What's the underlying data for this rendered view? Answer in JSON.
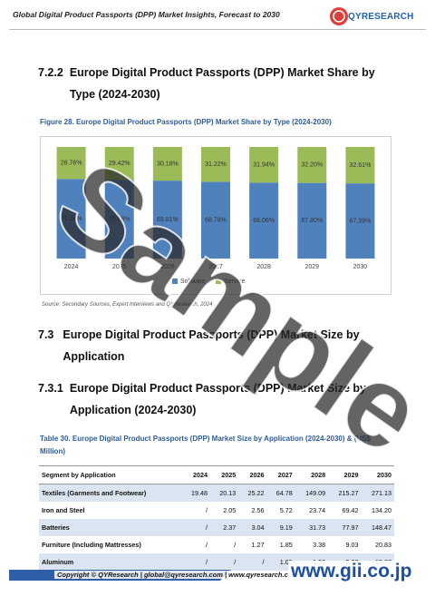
{
  "header": {
    "title": "Global Digital Product Passports (DPP) Market Insights, Forecast to 2030",
    "logo": "QYRESEARCH"
  },
  "sections": [
    {
      "number": "7.2.2",
      "title": "Europe Digital Product Passports (DPP) Market Share by Type (2024-2030)"
    },
    {
      "number": "7.3",
      "title": "Europe Digital Product Passports (DPP) Market Size by Application"
    },
    {
      "number": "7.3.1",
      "title": "Europe Digital Product Passports (DPP) Market Size by Application (2024-2030)"
    }
  ],
  "figure": {
    "caption": "Figure 28.  Europe Digital Product Passports (DPP) Market Share by Type (2024-2030)",
    "source": "Source: Secondary Sources, Expert Interviews and QYResearch, 2024"
  },
  "chart_data": {
    "type": "bar",
    "stacked": true,
    "categories": [
      "2024",
      "2025",
      "2026",
      "2027",
      "2028",
      "2029",
      "2030"
    ],
    "series": [
      {
        "name": "Software",
        "color": "#4f81bd",
        "values": [
          71.24,
          70.58,
          69.81,
          68.78,
          68.06,
          67.8,
          67.39
        ],
        "value_labels": [
          "71.24%",
          "70.58%",
          "69.81%",
          "68.78%",
          "68.06%",
          "67.80%",
          "67.39%"
        ]
      },
      {
        "name": "Service",
        "color": "#9bbb59",
        "values": [
          28.76,
          29.42,
          30.18,
          31.22,
          31.94,
          32.2,
          32.61
        ],
        "value_labels": [
          "28.76%",
          "29.42%",
          "30.18%",
          "31.22%",
          "31.94%",
          "32.20%",
          "32.61%"
        ]
      }
    ],
    "ylim": [
      0,
      100
    ],
    "legend": "bottom"
  },
  "table": {
    "caption": "Table 30.  Europe Digital Product Passports (DPP) Market Size by Application (2024-2030) & (US$ Million)",
    "header": [
      "Segment by Application",
      "2024",
      "2025",
      "2026",
      "2027",
      "2028",
      "2029",
      "2030"
    ],
    "rows": [
      [
        "Textiles (Garments and Footwear)",
        "19.48",
        "20.13",
        "25.22",
        "64.78",
        "149.09",
        "215.27",
        "271.13"
      ],
      [
        "Iron and Steel",
        "/",
        "2.05",
        "2.56",
        "5.72",
        "23.74",
        "69.42",
        "134.20"
      ],
      [
        "Batteries",
        "/",
        "2.37",
        "3.04",
        "9.19",
        "31.73",
        "77.97",
        "148.47"
      ],
      [
        "Furniture (Including Mattresses)",
        "/",
        "/",
        "1.27",
        "1.85",
        "3.38",
        "9.03",
        "20.83"
      ],
      [
        "Aluminum",
        "/",
        "/",
        "/",
        "1.05",
        "1.93",
        "5.38",
        "15.37"
      ]
    ]
  },
  "footer": {
    "copyright": "Copyright © QYResearch | global@qyresearch.com | www.qyresearch.com",
    "badge": "www.gii.co.jp",
    "watermark": "Sample"
  }
}
